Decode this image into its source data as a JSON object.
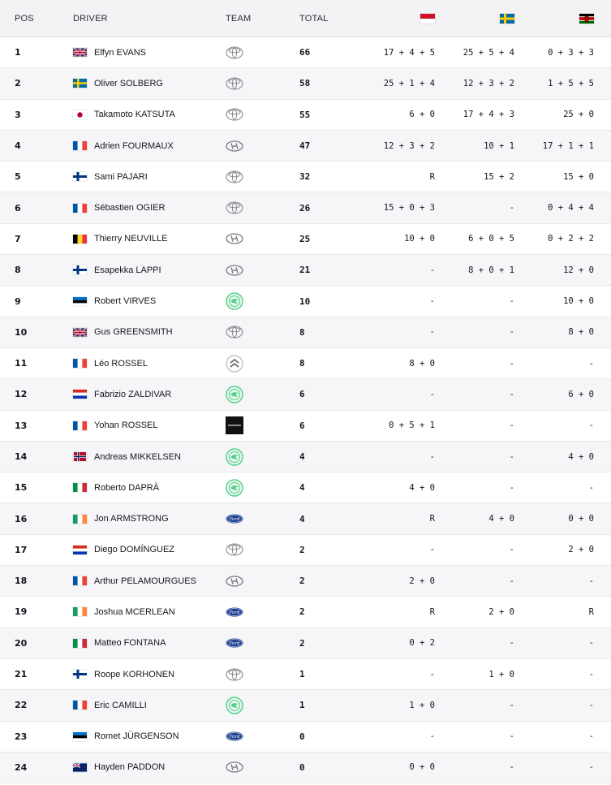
{
  "header": {
    "pos": "POS",
    "driver": "DRIVER",
    "team": "TEAM",
    "total": "TOTAL",
    "rally_flags": [
      "monaco-flag",
      "sweden-flag",
      "kenya-flag"
    ]
  },
  "rows": [
    {
      "pos": "1",
      "flag": "gb",
      "driver": "Elfyn EVANS",
      "team": "toyota",
      "total": "66",
      "r1": "17 + 4 + 5",
      "r2": "25 + 5 + 4",
      "r3": "0 + 3 + 3"
    },
    {
      "pos": "2",
      "flag": "se",
      "driver": "Oliver SOLBERG",
      "team": "toyota",
      "total": "58",
      "r1": "25 + 1 + 4",
      "r2": "12 + 3 + 2",
      "r3": "1 + 5 + 5"
    },
    {
      "pos": "3",
      "flag": "jp",
      "driver": "Takamoto KATSUTA",
      "team": "toyota",
      "total": "55",
      "r1": "6 + 0",
      "r2": "17 + 4 + 3",
      "r3": "25 + 0"
    },
    {
      "pos": "4",
      "flag": "fr",
      "driver": "Adrien FOURMAUX",
      "team": "hyundai",
      "total": "47",
      "r1": "12 + 3 + 2",
      "r2": "10 + 1",
      "r3": "17 + 1 + 1"
    },
    {
      "pos": "5",
      "flag": "fi",
      "driver": "Sami PAJARI",
      "team": "toyota",
      "total": "32",
      "r1": "R",
      "r2": "15 + 2",
      "r3": "15 + 0"
    },
    {
      "pos": "6",
      "flag": "fr",
      "driver": "Sébastien OGIER",
      "team": "toyota",
      "total": "26",
      "r1": "15 + 0 + 3",
      "r2": "-",
      "r3": "0 + 4 + 4"
    },
    {
      "pos": "7",
      "flag": "be",
      "driver": "Thierry NEUVILLE",
      "team": "hyundai",
      "total": "25",
      "r1": "10 + 0",
      "r2": "6 + 0 + 5",
      "r3": "0 + 2 + 2"
    },
    {
      "pos": "8",
      "flag": "fi",
      "driver": "Esapekka LAPPI",
      "team": "hyundai",
      "total": "21",
      "r1": "-",
      "r2": "8 + 0 + 1",
      "r3": "12 + 0"
    },
    {
      "pos": "9",
      "flag": "ee",
      "driver": "Robert VIRVES",
      "team": "skoda",
      "total": "10",
      "r1": "-",
      "r2": "-",
      "r3": "10 + 0"
    },
    {
      "pos": "10",
      "flag": "gb",
      "driver": "Gus GREENSMITH",
      "team": "toyota",
      "total": "8",
      "r1": "-",
      "r2": "-",
      "r3": "8 + 0"
    },
    {
      "pos": "11",
      "flag": "fr",
      "driver": "Léo ROSSEL",
      "team": "citroen",
      "total": "8",
      "r1": "8 + 0",
      "r2": "-",
      "r3": "-"
    },
    {
      "pos": "12",
      "flag": "py",
      "driver": "Fabrizio ZALDIVAR",
      "team": "skoda",
      "total": "6",
      "r1": "-",
      "r2": "-",
      "r3": "6 + 0"
    },
    {
      "pos": "13",
      "flag": "fr",
      "driver": "Yohan ROSSEL",
      "team": "lancia",
      "total": "6",
      "r1": "0 + 5 + 1",
      "r2": "-",
      "r3": "-"
    },
    {
      "pos": "14",
      "flag": "no",
      "driver": "Andreas MIKKELSEN",
      "team": "skoda",
      "total": "4",
      "r1": "-",
      "r2": "-",
      "r3": "4 + 0"
    },
    {
      "pos": "15",
      "flag": "it",
      "driver": "Roberto DAPRÀ",
      "team": "skoda",
      "total": "4",
      "r1": "4 + 0",
      "r2": "-",
      "r3": "-"
    },
    {
      "pos": "16",
      "flag": "ie",
      "driver": "Jon ARMSTRONG",
      "team": "ford",
      "total": "4",
      "r1": "R",
      "r2": "4 + 0",
      "r3": "0 + 0"
    },
    {
      "pos": "17",
      "flag": "py",
      "driver": "Diego DOMÍNGUEZ",
      "team": "toyota",
      "total": "2",
      "r1": "-",
      "r2": "-",
      "r3": "2 + 0"
    },
    {
      "pos": "18",
      "flag": "fr",
      "driver": "Arthur PELAMOURGUES",
      "team": "hyundai",
      "total": "2",
      "r1": "2 + 0",
      "r2": "-",
      "r3": "-"
    },
    {
      "pos": "19",
      "flag": "ie",
      "driver": "Joshua MCERLEAN",
      "team": "ford",
      "total": "2",
      "r1": "R",
      "r2": "2 + 0",
      "r3": "R"
    },
    {
      "pos": "20",
      "flag": "it",
      "driver": "Matteo FONTANA",
      "team": "ford",
      "total": "2",
      "r1": "0 + 2",
      "r2": "-",
      "r3": "-"
    },
    {
      "pos": "21",
      "flag": "fi",
      "driver": "Roope KORHONEN",
      "team": "toyota",
      "total": "1",
      "r1": "-",
      "r2": "1 + 0",
      "r3": "-"
    },
    {
      "pos": "22",
      "flag": "fr",
      "driver": "Eric CAMILLI",
      "team": "skoda",
      "total": "1",
      "r1": "1 + 0",
      "r2": "-",
      "r3": "-"
    },
    {
      "pos": "23",
      "flag": "ee",
      "driver": "Romet JÜRGENSON",
      "team": "ford",
      "total": "0",
      "r1": "-",
      "r2": "-",
      "r3": "-"
    },
    {
      "pos": "24",
      "flag": "nz",
      "driver": "Hayden PADDON",
      "team": "hyundai",
      "total": "0",
      "r1": "0 + 0",
      "r2": "-",
      "r3": "-"
    }
  ]
}
